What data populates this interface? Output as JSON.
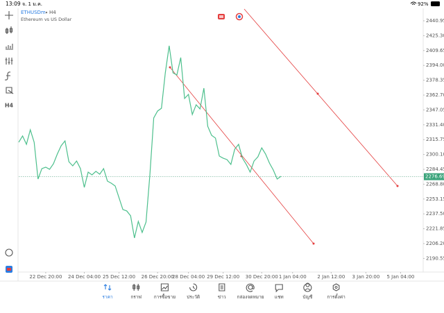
{
  "status_bar": {
    "time": "13:09",
    "date": "จ. 1 ม.ค.",
    "battery": "92%"
  },
  "toolbar": {
    "timeframe": "H4"
  },
  "chart_data": {
    "type": "line",
    "symbol": "ETHUSDm",
    "period": "H4",
    "description": "Ethereum vs US Dollar",
    "color": "#4cbf8c",
    "last_price": 2276.69,
    "categories": [
      null,
      null,
      null,
      null,
      null,
      null,
      null,
      "22 Dec 20:00",
      null,
      null,
      null,
      null,
      null,
      null,
      null,
      null,
      null,
      "24 Dec 04:00",
      null,
      null,
      null,
      null,
      null,
      null,
      null,
      null,
      "25 Dec 12:00",
      null,
      null,
      null,
      null,
      null,
      null,
      null,
      null,
      null,
      "26 Dec 20:00",
      null,
      null,
      null,
      null,
      null,
      null,
      null,
      "28 Dec 04:00",
      null,
      null,
      null,
      null,
      null,
      null,
      null,
      null,
      "29 Dec 12:00",
      null,
      null,
      null,
      null,
      null,
      null,
      null,
      null,
      null,
      "30 Dec 20:00",
      null,
      null,
      null,
      null,
      null,
      null,
      null,
      "1 Jan 04:00",
      null,
      null,
      null,
      null,
      null,
      null,
      null,
      null,
      null,
      "2 Jan 12:00",
      null,
      null,
      null,
      null,
      null,
      null,
      null,
      null,
      "3 Jan 20:00",
      null,
      null,
      null,
      null,
      null,
      null,
      null,
      null,
      "5 Jan 04:00",
      null,
      null,
      null,
      null,
      null
    ],
    "values": [
      2313.0,
      2319.6,
      2310.8,
      2326.1,
      2313.0,
      2274.2,
      2285.2,
      2286.7,
      2284.5,
      2290.3,
      2300.5,
      2309.3,
      2314.4,
      2292.5,
      2288.1,
      2293.2,
      2285.2,
      2265.4,
      2281.5,
      2278.6,
      2282.3,
      2279.3,
      2285.2,
      2272.0,
      2269.8,
      2266.9,
      2254.5,
      2242.1,
      2240.6,
      2235.5,
      2212.1,
      2229.6,
      2217.9,
      2228.9,
      2278.6,
      2338.6,
      2345.9,
      2348.8,
      2386.1,
      2414.6,
      2386.1,
      2383.9,
      2402.2,
      2359.1,
      2363.4,
      2342.2,
      2352.5,
      2348.1,
      2370.0,
      2329.8,
      2320.3,
      2317.4,
      2298.4,
      2296.2,
      2294.7,
      2289.6,
      2305.7,
      2310.8,
      2296.2,
      2289.6,
      2281.5,
      2293.2,
      2297.6,
      2307.1,
      2300.5,
      2291.0,
      2283.7,
      2274.2,
      2277.1,
      null,
      null,
      null,
      null,
      null,
      null,
      null,
      null,
      null,
      null,
      null,
      null,
      null,
      null,
      null,
      null,
      null,
      null,
      null,
      null,
      null,
      null,
      null,
      null,
      null,
      null,
      null,
      null,
      null,
      null,
      null,
      null,
      null,
      null,
      null,
      null
    ],
    "ylim": [
      2176.2,
      2454.1
    ],
    "yticks": [
      2440.95,
      {
        "value": 2425.3,
        "label": "2425.30"
      },
      2409.65,
      {
        "value": 2394,
        "label": "2394.00"
      },
      2378.35,
      {
        "value": 2362.7,
        "label": "2362.70"
      },
      2347.05,
      {
        "value": 2331.4,
        "label": "2331.40"
      },
      2315.75,
      {
        "value": 2300.1,
        "label": "2300.10"
      },
      2284.45,
      {
        "value": 2268.8,
        "label": "2268.80"
      },
      2253.15,
      {
        "value": 2237.5,
        "label": "2237.50"
      },
      2221.85,
      {
        "value": 2206.2,
        "label": "2206.20"
      },
      2190.55
    ]
  },
  "tabs": [
    "ราคา",
    "กราฟ",
    "การซื้อขาย",
    "ประวัติ",
    "ข่าว",
    "กล่องจดหมาย",
    "แชท",
    "บัญชี",
    "การตั้งค่า"
  ]
}
